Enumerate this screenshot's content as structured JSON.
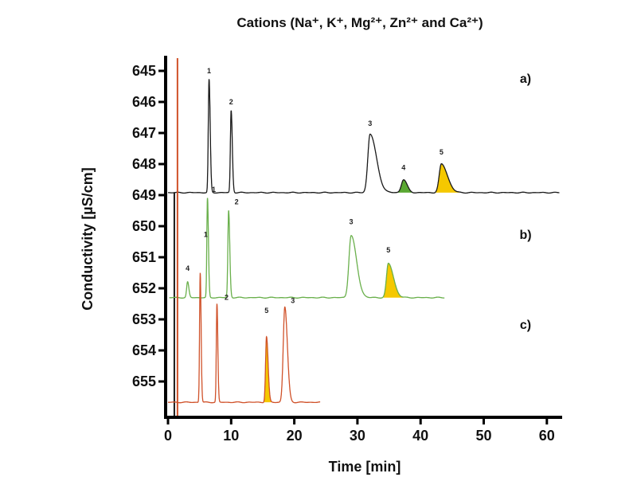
{
  "chart_data": {
    "type": "line",
    "title": "Cations (Na⁺, K⁺, Mg²⁺, Zn²⁺ and Ca²⁺)",
    "xlabel": "Time [min]",
    "ylabel": "Conductivity [µS/cm]",
    "xlim": [
      0,
      62
    ],
    "ylim": [
      655.5,
      644.6
    ],
    "y_reversed": true,
    "grid": false,
    "x_ticks": [
      "0",
      "10",
      "20",
      "30",
      "40",
      "50",
      "60"
    ],
    "y_ticks": [
      "645",
      "646",
      "647",
      "648",
      "649",
      "650",
      "651",
      "652",
      "653",
      "654",
      "655"
    ],
    "fill_colors": {
      "4": "#5aa832",
      "5": "#f5c800"
    },
    "series": [
      {
        "panel": "a)",
        "color": "#1a1a1a",
        "x_range": [
          0,
          62
        ],
        "baseline": 648.92,
        "system_peak_time": 1.0,
        "peaks": [
          {
            "label": "1",
            "time": 6.5,
            "value": 645.28
          },
          {
            "label": "2",
            "time": 10.0,
            "value": 646.28
          },
          {
            "label": "3",
            "time": 32.0,
            "value": 647.03
          },
          {
            "label": "4",
            "time": 37.3,
            "value": 648.5
          },
          {
            "label": "5",
            "time": 43.3,
            "value": 648.0
          }
        ]
      },
      {
        "panel": "b)",
        "color": "#6ab04c",
        "x_range": [
          0.2,
          43.8
        ],
        "baseline": 652.3,
        "peaks": [
          {
            "label": "4",
            "time": 3.1,
            "value": 651.8
          },
          {
            "label": "1",
            "time": 6.25,
            "value": 649.1
          },
          {
            "label": "2",
            "time": 9.6,
            "value": 649.5
          },
          {
            "label": "3",
            "time": 29.0,
            "value": 650.3
          },
          {
            "label": "5",
            "time": 34.9,
            "value": 651.2
          }
        ]
      },
      {
        "panel": "c)",
        "color": "#d0522a",
        "x_range": [
          0,
          24.1
        ],
        "baseline": 655.67,
        "system_peak_time": 1.5,
        "peaks": [
          {
            "label": "1",
            "time": 5.1,
            "value": 651.5
          },
          {
            "label": "2",
            "time": 7.75,
            "value": 652.5
          },
          {
            "label": "5",
            "time": 15.6,
            "value": 653.56
          },
          {
            "label": "3",
            "time": 18.5,
            "value": 652.6
          }
        ]
      }
    ]
  }
}
